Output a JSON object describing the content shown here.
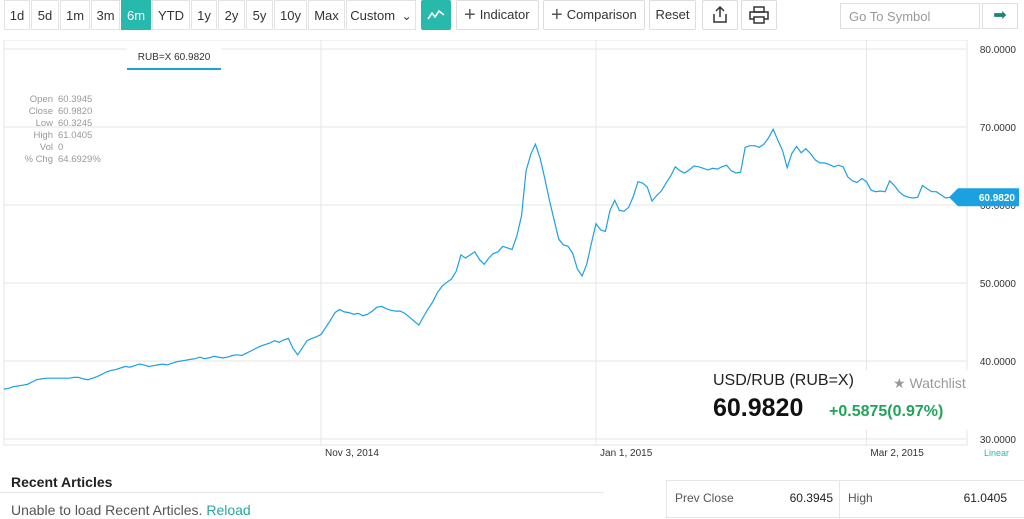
{
  "toolbar": {
    "ranges": [
      "1d",
      "5d",
      "1m",
      "3m",
      "6m",
      "YTD",
      "1y",
      "2y",
      "5y",
      "10y",
      "Max"
    ],
    "active_range": "6m",
    "custom_label": "Custom",
    "custom_caret": "⌄",
    "chart_type_icon": "line-chart-icon",
    "indicator_label": "Indicator",
    "comparison_label": "Comparison",
    "reset_label": "Reset",
    "share_icon": "share-icon",
    "print_icon": "print-icon",
    "symbol_placeholder": "Go To Symbol",
    "go_icon": "arrow-right-icon"
  },
  "ohlc": [
    {
      "label": "Open",
      "value": "60.3945"
    },
    {
      "label": "Close",
      "value": "60.9820"
    },
    {
      "label": "Low",
      "value": "60.3245"
    },
    {
      "label": "High",
      "value": "61.0405"
    },
    {
      "label": "Vol",
      "value": "0"
    },
    {
      "label": "% Chg",
      "value": "64.6929%"
    }
  ],
  "legend_tag": "RUB=X 60.9820",
  "scale_label": "Linear",
  "current_price_label": "60.9820",
  "quote": {
    "symbol": "USD/RUB (RUB=X)",
    "watchlist": "Watchlist",
    "watch_icon": "star-icon",
    "price": "60.9820",
    "change": "+0.5875",
    "change_pct": "(0.97%)"
  },
  "recent": {
    "title": "Recent Articles",
    "message": "Unable to load Recent Articles.",
    "reload": "Reload"
  },
  "stats": {
    "prev_close_label": "Prev Close",
    "prev_close_value": "60.3945",
    "high_label": "High",
    "high_value": "61.0405"
  },
  "colors": {
    "line": "#1ba1e2",
    "accent": "#27b9ab",
    "positive": "#21a35a"
  },
  "chart_data": {
    "type": "line",
    "title": "",
    "xlabel": "",
    "ylabel": "",
    "ylim": [
      30,
      80
    ],
    "yticks": [
      "80.0000",
      "70.0000",
      "60.0000",
      "50.0000",
      "40.0000",
      "30.0000"
    ],
    "ytick_values": [
      80,
      70,
      60,
      50,
      40,
      30
    ],
    "xtick_labels": [
      "Nov 3, 2014",
      "Jan 1, 2015",
      "Mar 2, 2015"
    ],
    "xtick_indices": [
      68,
      127,
      185
    ],
    "grid": true,
    "series": [
      {
        "values": [
          36.4,
          36.5,
          36.7,
          36.8,
          36.9,
          37.0,
          37.3,
          37.6,
          37.7,
          37.8,
          37.8,
          37.8,
          37.8,
          37.8,
          37.8,
          37.9,
          37.9,
          37.7,
          37.6,
          37.8,
          38.0,
          38.3,
          38.6,
          38.8,
          38.9,
          39.1,
          39.3,
          39.2,
          39.4,
          39.6,
          39.5,
          39.3,
          39.4,
          39.5,
          39.6,
          39.5,
          39.7,
          39.9,
          40.0,
          40.1,
          40.2,
          40.3,
          40.5,
          40.3,
          40.4,
          40.6,
          40.5,
          40.4,
          40.5,
          40.7,
          40.8,
          40.7,
          41.0,
          41.3,
          41.6,
          41.9,
          42.1,
          42.3,
          42.6,
          42.4,
          42.7,
          42.9,
          41.6,
          40.8,
          41.7,
          42.6,
          42.9,
          43.1,
          43.4,
          44.3,
          45.2,
          46.2,
          46.6,
          46.3,
          46.2,
          46.0,
          46.1,
          45.8,
          46.0,
          46.4,
          46.9,
          47.0,
          46.7,
          46.5,
          46.4,
          46.4,
          46.1,
          45.6,
          45.1,
          44.6,
          45.7,
          46.7,
          47.6,
          48.8,
          49.6,
          50.1,
          50.5,
          51.5,
          53.6,
          53.2,
          53.6,
          54.0,
          53.0,
          52.4,
          53.2,
          53.8,
          54.0,
          54.7,
          54.5,
          54.3,
          56.0,
          58.6,
          64.4,
          66.5,
          67.8,
          66.0,
          63.4,
          60.6,
          58.1,
          55.6,
          54.9,
          54.7,
          53.8,
          51.8,
          50.9,
          52.4,
          55.1,
          57.6,
          56.8,
          56.6,
          59.3,
          60.6,
          59.3,
          59.2,
          59.7,
          61.1,
          63.0,
          62.8,
          62.3,
          60.5,
          61.2,
          61.8,
          62.8,
          63.7,
          64.9,
          64.4,
          64.1,
          64.5,
          65.0,
          64.9,
          64.7,
          64.5,
          64.7,
          64.6,
          64.9,
          65.1,
          64.4,
          64.1,
          64.2,
          67.4,
          67.6,
          67.6,
          67.4,
          67.8,
          68.6,
          69.7,
          68.3,
          67.0,
          64.8,
          66.6,
          67.5,
          66.7,
          67.2,
          66.6,
          65.8,
          65.4,
          65.4,
          65.2,
          64.9,
          65.1,
          64.9,
          63.6,
          63.1,
          62.9,
          63.4,
          63.0,
          61.9,
          61.7,
          61.8,
          61.7,
          63.1,
          62.5,
          61.7,
          61.2,
          61.0,
          60.9,
          61.0,
          62.5,
          62.1,
          61.7,
          61.7,
          61.3,
          60.9,
          61.0,
          61.0
        ]
      }
    ]
  }
}
